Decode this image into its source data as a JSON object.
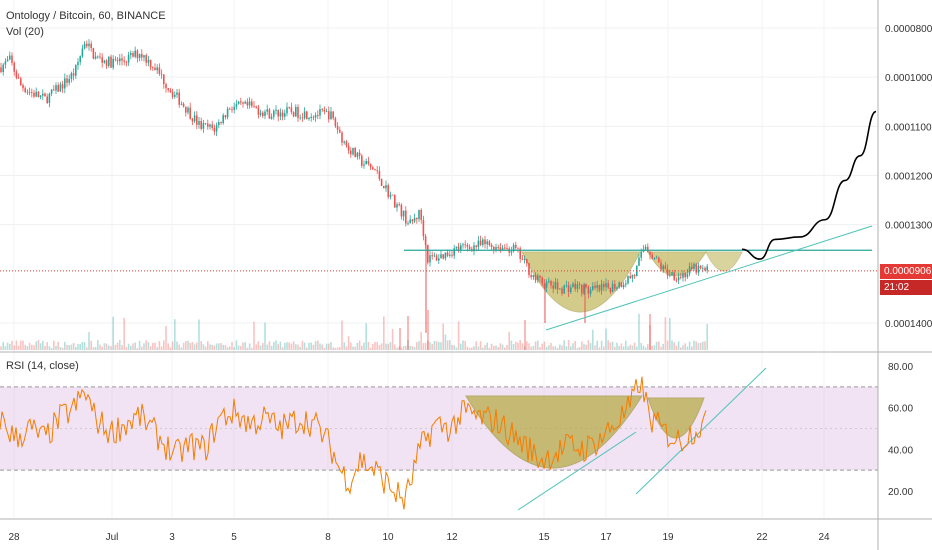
{
  "header": {
    "symbol_title": "Ontology / Bitcoin, 60, BINANCE",
    "volume_label": "Vol (20)",
    "rsi_label": "RSI (14, close)"
  },
  "price_scale": {
    "ticks": [
      "0.0001400",
      "0.0001300",
      "0.0001200",
      "0.0001100",
      "0.0001000",
      "0.0000800"
    ],
    "current_price_label": "0.0000906",
    "countdown_label": "21:02"
  },
  "rsi_scale": {
    "ticks": [
      "80.00",
      "60.00",
      "40.00",
      "20.00"
    ]
  },
  "time_axis": {
    "labels": [
      "28",
      "Jul",
      "3",
      "5",
      "8",
      "10",
      "12",
      "15",
      "17",
      "19",
      "22",
      "24"
    ]
  },
  "colors": {
    "up": "#26a69a",
    "down": "#ef5350",
    "rsi_line": "#f57c00",
    "rsi_band": "#e1bee7",
    "pattern_fill": "#b5a93e",
    "trendline": "#4fc3b8",
    "price_line": "#e53935",
    "projection": "#000000"
  },
  "chart_data": [
    {
      "type": "candlestick",
      "title": "Ontology / Bitcoin, 60, BINANCE",
      "ylim": [
        7.7e-05,
        0.000145
      ],
      "yticks": [
        8e-05,
        0.0001,
        0.00011,
        0.00012,
        0.00013,
        0.00014
      ],
      "x_labels": [
        "28",
        "Jul",
        "3",
        "5",
        "8",
        "10",
        "12",
        "15",
        "17",
        "19",
        "22",
        "24"
      ],
      "approx_close_path": [
        [
          0,
          0.000132
        ],
        [
          10,
          0.0001335
        ],
        [
          20,
          0.0001285
        ],
        [
          30,
          0.000127
        ],
        [
          45,
          0.0001255
        ],
        [
          60,
          0.000128
        ],
        [
          75,
          0.000131
        ],
        [
          85,
          0.0001375
        ],
        [
          95,
          0.000134
        ],
        [
          110,
          0.000133
        ],
        [
          125,
          0.0001335
        ],
        [
          140,
          0.000135
        ],
        [
          155,
          0.000132
        ],
        [
          170,
          0.0001275
        ],
        [
          185,
          0.000124
        ],
        [
          200,
          0.00012
        ],
        [
          215,
          0.0001195
        ],
        [
          230,
          0.000124
        ],
        [
          250,
          0.000124
        ],
        [
          270,
          0.0001225
        ],
        [
          290,
          0.000123
        ],
        [
          310,
          0.0001225
        ],
        [
          330,
          0.0001225
        ],
        [
          345,
          0.0001165
        ],
        [
          360,
          0.000113
        ],
        [
          375,
          0.000111
        ],
        [
          390,
          0.000106
        ],
        [
          400,
          0.000103
        ],
        [
          410,
          0.0001
        ],
        [
          420,
          0.0001025
        ],
        [
          428,
          9.3e-05
        ],
        [
          440,
          9.35e-05
        ],
        [
          455,
          9.5e-05
        ],
        [
          470,
          9.55e-05
        ],
        [
          485,
          9.6e-05
        ],
        [
          500,
          9.55e-05
        ],
        [
          515,
          9.5e-05
        ],
        [
          525,
          9.2e-05
        ],
        [
          535,
          8.9e-05
        ],
        [
          545,
          8.8e-05
        ],
        [
          560,
          8.7e-05
        ],
        [
          575,
          8.75e-05
        ],
        [
          590,
          8.65e-05
        ],
        [
          605,
          8.7e-05
        ],
        [
          620,
          8.8e-05
        ],
        [
          635,
          9e-05
        ],
        [
          645,
          9.6e-05
        ],
        [
          655,
          9.3e-05
        ],
        [
          665,
          9.05e-05
        ],
        [
          680,
          8.95e-05
        ],
        [
          695,
          9.1e-05
        ],
        [
          705,
          9.06e-05
        ]
      ],
      "resistance_level": 9.48e-05,
      "current_price": 9.06e-05,
      "projection_path": [
        [
          742,
          9.5e-05
        ],
        [
          760,
          9.3e-05
        ],
        [
          775,
          9.7e-05
        ],
        [
          800,
          9.75e-05
        ],
        [
          825,
          0.000101
        ],
        [
          845,
          0.000109
        ],
        [
          860,
          0.000114
        ],
        [
          876,
          0.000123
        ]
      ]
    },
    {
      "type": "bar",
      "title": "Vol (20)",
      "note": "volume histogram along the bottom of the price pane"
    },
    {
      "type": "line",
      "title": "RSI (14, close)",
      "ylim": [
        10,
        85
      ],
      "yticks": [
        80,
        60,
        40,
        20
      ],
      "bands": [
        30,
        70
      ],
      "approx_path": [
        [
          0,
          55
        ],
        [
          15,
          45
        ],
        [
          30,
          50
        ],
        [
          45,
          45
        ],
        [
          60,
          55
        ],
        [
          75,
          60
        ],
        [
          85,
          68
        ],
        [
          95,
          55
        ],
        [
          110,
          48
        ],
        [
          125,
          52
        ],
        [
          140,
          56
        ],
        [
          160,
          45
        ],
        [
          175,
          37
        ],
        [
          190,
          42
        ],
        [
          205,
          40
        ],
        [
          220,
          55
        ],
        [
          235,
          58
        ],
        [
          250,
          52
        ],
        [
          265,
          55
        ],
        [
          280,
          50
        ],
        [
          300,
          55
        ],
        [
          315,
          52
        ],
        [
          330,
          42
        ],
        [
          340,
          30
        ],
        [
          350,
          25
        ],
        [
          360,
          35
        ],
        [
          375,
          30
        ],
        [
          390,
          22
        ],
        [
          405,
          15
        ],
        [
          420,
          40
        ],
        [
          435,
          52
        ],
        [
          450,
          50
        ],
        [
          465,
          58
        ],
        [
          480,
          55
        ],
        [
          495,
          54
        ],
        [
          510,
          48
        ],
        [
          525,
          42
        ],
        [
          540,
          35
        ],
        [
          555,
          38
        ],
        [
          570,
          42
        ],
        [
          585,
          40
        ],
        [
          600,
          45
        ],
        [
          615,
          52
        ],
        [
          630,
          60
        ],
        [
          640,
          73
        ],
        [
          650,
          55
        ],
        [
          665,
          48
        ],
        [
          680,
          44
        ],
        [
          695,
          50
        ],
        [
          705,
          52
        ]
      ]
    }
  ]
}
